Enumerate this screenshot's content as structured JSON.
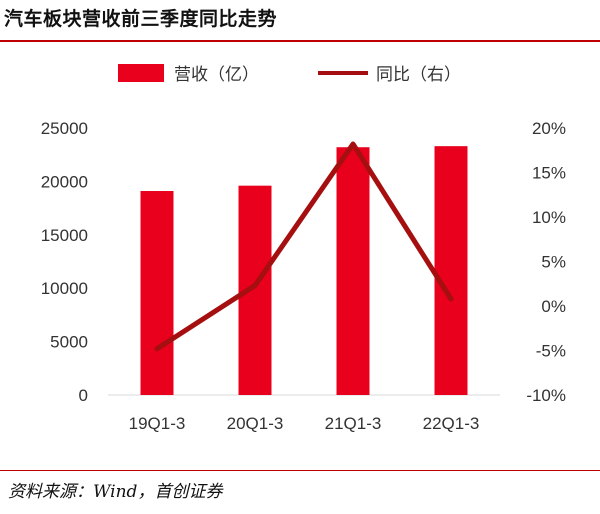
{
  "title": "汽车板块营收前三季度同比走势",
  "source": "资料来源：Wind，首创证券",
  "colors": {
    "accent": "#c00000",
    "bar": "#e8001c",
    "line": "#a50f0f"
  },
  "chart_data": {
    "type": "bar",
    "categories": [
      "19Q1-3",
      "20Q1-3",
      "21Q1-3",
      "22Q1-3"
    ],
    "series": [
      {
        "name": "营收（亿）",
        "type": "bar",
        "axis": "left",
        "values": [
          19100,
          19600,
          23200,
          23300
        ]
      },
      {
        "name": "同比（右）",
        "type": "line",
        "axis": "right",
        "values": [
          -4.8,
          2.3,
          18.2,
          0.8
        ]
      }
    ],
    "y_left": {
      "ylim": [
        0,
        25000
      ],
      "ticks": [
        "0",
        "5000",
        "10000",
        "15000",
        "20000",
        "25000"
      ]
    },
    "y_right": {
      "ylim": [
        -10,
        20
      ],
      "ticks": [
        "-10%",
        "-5%",
        "0%",
        "5%",
        "10%",
        "15%",
        "20%"
      ]
    },
    "legend_position": "top",
    "grid": false
  }
}
